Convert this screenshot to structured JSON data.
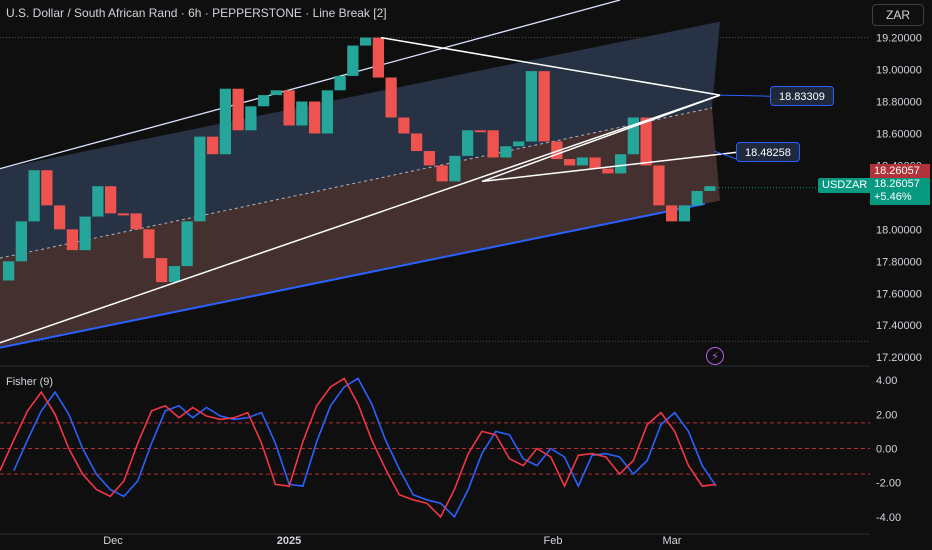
{
  "header": {
    "title": "U.S. Dollar / South African Rand · 6h · PEPPERSTONE · Line Break [2]",
    "currency": "ZAR"
  },
  "indicator": {
    "title": "Fisher (9)"
  },
  "symbol": {
    "name": "USDZAR",
    "last_price": "18.26057",
    "change": "+5.46%"
  },
  "callouts": [
    {
      "label": "18.83309",
      "value": 18.83309
    },
    {
      "label": "18.48258",
      "value": 18.48258
    }
  ],
  "colors": {
    "up": "#26a69a",
    "down": "#ef5350",
    "fisher": "#f23645",
    "trigger": "#2962ff",
    "channel_upper": "#ffffff",
    "channel_lower": "#2962ff",
    "accent_tag": "#089981"
  },
  "chart_data": {
    "type": "line-break",
    "x_ticks": [
      "Dec",
      "2025",
      "Feb",
      "Mar"
    ],
    "y_ticks": [
      "19.20000",
      "19.00000",
      "18.80000",
      "18.60000",
      "18.40000",
      "18.20000",
      "18.00000",
      "17.80000",
      "17.60000",
      "17.40000",
      "17.20000"
    ],
    "y_range": [
      17.17,
      19.31
    ],
    "close_path": [
      17.68,
      17.8,
      18.05,
      18.37,
      18.15,
      18.0,
      17.87,
      18.08,
      18.27,
      18.1,
      18.1,
      18.0,
      17.82,
      17.67,
      17.77,
      18.05,
      18.58,
      18.47,
      18.88,
      18.62,
      18.77,
      18.84,
      18.87,
      18.65,
      18.8,
      18.6,
      18.87,
      18.96,
      19.15,
      19.2,
      18.95,
      18.7,
      18.6,
      18.49,
      18.4,
      18.3,
      18.46,
      18.62,
      18.62,
      18.45,
      18.52,
      18.55,
      18.99,
      18.55,
      18.44,
      18.4,
      18.45,
      18.38,
      18.35,
      18.47,
      18.7,
      18.4,
      18.15,
      18.05,
      18.15,
      18.24,
      18.27
    ],
    "last_price": 18.26057,
    "annotations": [
      18.83309,
      18.48258
    ],
    "indicator": {
      "name": "Fisher (9)",
      "y_ticks": [
        "4.00",
        "2.00",
        "0.00",
        "-2.00",
        "-4.00"
      ],
      "y_range": [
        -4.3,
        4.3
      ],
      "levels": [
        1.5,
        0.0,
        -1.5
      ],
      "fisher": [
        -1.3,
        0.5,
        2.2,
        3.3,
        2.0,
        0.0,
        -1.5,
        -2.4,
        -2.8,
        -1.9,
        0.3,
        2.2,
        2.5,
        1.8,
        2.4,
        1.9,
        1.7,
        1.8,
        2.1,
        0.3,
        -2.1,
        -2.2,
        0.4,
        2.5,
        3.6,
        4.1,
        2.6,
        0.5,
        -1.2,
        -2.7,
        -3.0,
        -3.2,
        -4.0,
        -2.4,
        -0.3,
        1.0,
        0.8,
        -0.6,
        -1.0,
        0.0,
        -0.5,
        -2.2,
        -0.4,
        -0.3,
        -0.5,
        -1.5,
        -0.7,
        1.4,
        2.1,
        1.0,
        -1.0,
        -2.2,
        -2.1
      ]
    }
  }
}
